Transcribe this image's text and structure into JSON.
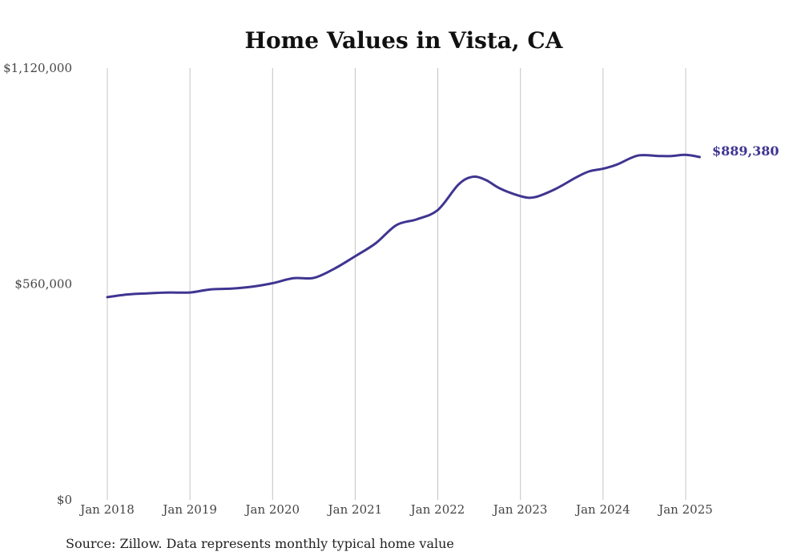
{
  "chart_data": {
    "type": "line",
    "title": "Home Values in Vista, CA",
    "xlabel": "",
    "ylabel": "",
    "source": "Source: Zillow. Data represents monthly typical home value",
    "ylim": [
      0,
      1120000
    ],
    "y_ticks": [
      {
        "value": 0,
        "label": "$0"
      },
      {
        "value": 560000,
        "label": "$560,000"
      },
      {
        "value": 1120000,
        "label": "$1,120,000"
      }
    ],
    "x_ticks": [
      {
        "value": 2018.0,
        "label": "Jan 2018"
      },
      {
        "value": 2019.0,
        "label": "Jan 2019"
      },
      {
        "value": 2020.0,
        "label": "Jan 2020"
      },
      {
        "value": 2021.0,
        "label": "Jan 2021"
      },
      {
        "value": 2022.0,
        "label": "Jan 2022"
      },
      {
        "value": 2023.0,
        "label": "Jan 2023"
      },
      {
        "value": 2024.0,
        "label": "Jan 2024"
      },
      {
        "value": 2025.0,
        "label": "Jan 2025"
      }
    ],
    "grid": "vertical",
    "line_color": "#3f3591",
    "series": [
      {
        "end_label": "$889,380",
        "points": [
          {
            "x": 2018.0,
            "y": 526000
          },
          {
            "x": 2018.25,
            "y": 533000
          },
          {
            "x": 2018.5,
            "y": 536000
          },
          {
            "x": 2018.75,
            "y": 538000
          },
          {
            "x": 2019.0,
            "y": 538000
          },
          {
            "x": 2019.25,
            "y": 546000
          },
          {
            "x": 2019.5,
            "y": 548000
          },
          {
            "x": 2019.75,
            "y": 553000
          },
          {
            "x": 2020.0,
            "y": 562000
          },
          {
            "x": 2020.25,
            "y": 575000
          },
          {
            "x": 2020.5,
            "y": 576000
          },
          {
            "x": 2020.75,
            "y": 600000
          },
          {
            "x": 2021.0,
            "y": 632000
          },
          {
            "x": 2021.25,
            "y": 666000
          },
          {
            "x": 2021.5,
            "y": 713000
          },
          {
            "x": 2021.75,
            "y": 728000
          },
          {
            "x": 2022.0,
            "y": 752000
          },
          {
            "x": 2022.25,
            "y": 818000
          },
          {
            "x": 2022.42,
            "y": 838000
          },
          {
            "x": 2022.58,
            "y": 830000
          },
          {
            "x": 2022.75,
            "y": 808000
          },
          {
            "x": 2023.0,
            "y": 788000
          },
          {
            "x": 2023.17,
            "y": 785000
          },
          {
            "x": 2023.42,
            "y": 806000
          },
          {
            "x": 2023.67,
            "y": 836000
          },
          {
            "x": 2023.83,
            "y": 852000
          },
          {
            "x": 2024.0,
            "y": 859000
          },
          {
            "x": 2024.17,
            "y": 870000
          },
          {
            "x": 2024.42,
            "y": 893000
          },
          {
            "x": 2024.67,
            "y": 892000
          },
          {
            "x": 2024.83,
            "y": 892000
          },
          {
            "x": 2025.0,
            "y": 895000
          },
          {
            "x": 2025.17,
            "y": 889380
          }
        ]
      }
    ]
  }
}
